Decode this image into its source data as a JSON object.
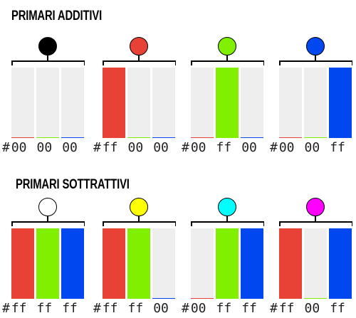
{
  "sections": [
    {
      "title": "PRIMARI ADDITIVI",
      "items": [
        {
          "color": "#000000",
          "channels": [
            0,
            0,
            0
          ],
          "hex": [
            "#",
            "00",
            "00",
            "00"
          ]
        },
        {
          "color": "#e84136",
          "channels": [
            1,
            0,
            0
          ],
          "hex": [
            "#",
            "ff",
            "00",
            "00"
          ]
        },
        {
          "color": "#80f000",
          "channels": [
            0,
            1,
            0
          ],
          "hex": [
            "#",
            "00",
            "ff",
            "00"
          ]
        },
        {
          "color": "#0047f0",
          "channels": [
            0,
            0,
            1
          ],
          "hex": [
            "#",
            "00",
            "00",
            "ff"
          ]
        }
      ]
    },
    {
      "title": "PRIMARI SOTTRATTIVI",
      "items": [
        {
          "color": "#ffffff",
          "channels": [
            1,
            1,
            1
          ],
          "hex": [
            "#",
            "ff",
            "ff",
            "ff"
          ]
        },
        {
          "color": "#ffff00",
          "channels": [
            1,
            1,
            0
          ],
          "hex": [
            "#",
            "ff",
            "ff",
            "00"
          ]
        },
        {
          "color": "#00ffff",
          "channels": [
            0,
            1,
            1
          ],
          "hex": [
            "#",
            "00",
            "ff",
            "ff"
          ]
        },
        {
          "color": "#ff00ff",
          "channels": [
            1,
            0,
            1
          ],
          "hex": [
            "#",
            "ff",
            "00",
            "ff"
          ]
        }
      ]
    }
  ],
  "channel_colors": [
    "#e84136",
    "#80f000",
    "#0047f0"
  ],
  "empty_color": "#eeeeee"
}
